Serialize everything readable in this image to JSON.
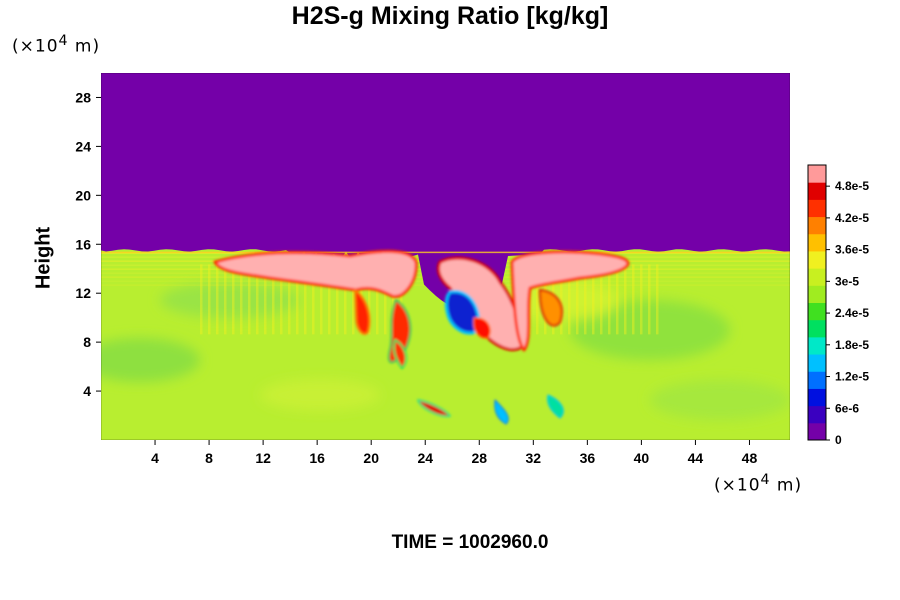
{
  "chart_data": {
    "type": "heatmap",
    "title": "H2S-g Mixing Ratio [kg/kg]",
    "ylabel": "Height",
    "y_unit_prefix": "(×10",
    "y_unit_exp": "4",
    "y_unit_suffix": " m)",
    "x_unit_prefix": "(×10",
    "x_unit_exp": "4",
    "x_unit_suffix": " m)",
    "xlim": [
      0,
      51
    ],
    "ylim": [
      0,
      30
    ],
    "x_ticks": [
      4,
      8,
      12,
      16,
      20,
      24,
      28,
      32,
      36,
      40,
      44,
      48
    ],
    "y_ticks": [
      4,
      8,
      12,
      16,
      20,
      24,
      28
    ],
    "colorbar": {
      "range": [
        0,
        5.2e-05
      ],
      "tick_values": [
        0,
        6e-06,
        1.2e-05,
        1.8e-05,
        2.4e-05,
        3e-05,
        3.6e-05,
        4.2e-05,
        4.8e-05
      ],
      "tick_labels": [
        "0",
        "6e-6",
        "1.2e-5",
        "1.8e-5",
        "2.4e-5",
        "3e-5",
        "3.6e-5",
        "4.2e-5",
        "4.8e-5"
      ],
      "colors": [
        "#7400a8",
        "#3a00c0",
        "#0010e0",
        "#0070ff",
        "#00c0ff",
        "#00e8c8",
        "#00e060",
        "#40e020",
        "#a0ec20",
        "#c8f020",
        "#f0f020",
        "#ffc000",
        "#ff8000",
        "#ff3000",
        "#e00000",
        "#ff9a9a"
      ]
    },
    "regions": {
      "upper_value": 0,
      "lower_background_value": 3.2e-05,
      "boundary_height": 15.5
    },
    "time_text": "TIME = 1002960.0"
  },
  "colors": {
    "upper": "#7400a8",
    "background": "#b8ee30",
    "pink": "#ffb0b0"
  }
}
